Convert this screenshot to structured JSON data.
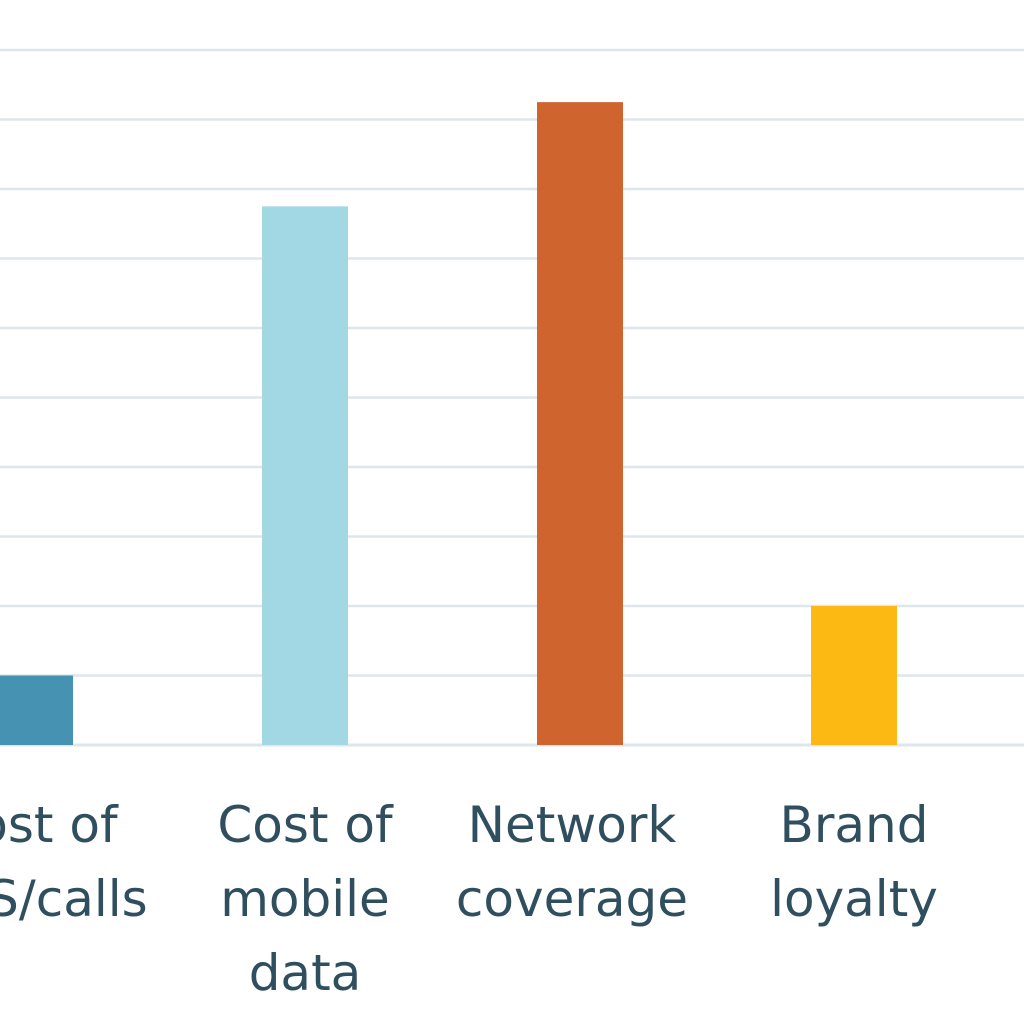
{
  "chart_data": {
    "type": "bar",
    "categories": [
      [
        "Cost of",
        "SMS/calls"
      ],
      [
        "Cost of",
        "mobile",
        "data"
      ],
      [
        "Network",
        "coverage"
      ],
      [
        "Brand",
        "loyalty"
      ]
    ],
    "values": [
      1,
      7.75,
      9.25,
      2
    ],
    "colors": [
      "#4592b3",
      "#a2d7e4",
      "#d0642f",
      "#fdb913"
    ],
    "ylim": [
      0,
      10
    ],
    "grid": true,
    "grid_color": "#dde6ec",
    "label_color": "#2f4f5f"
  }
}
